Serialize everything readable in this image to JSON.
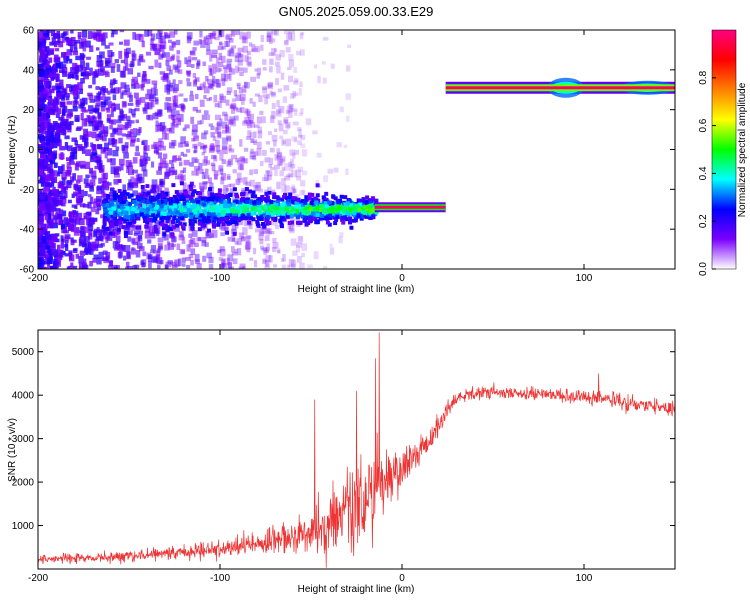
{
  "figure": {
    "title": "GN05.2025.059.00.33.E29"
  },
  "chart_data": [
    {
      "type": "heatmap",
      "xlabel": "Height of straight line (km)",
      "ylabel": "Frequency (Hz)",
      "xlim": [
        -200,
        150
      ],
      "ylim": [
        -60,
        60
      ],
      "x_ticks": [
        -200,
        -100,
        0,
        100
      ],
      "x_tick_labels": [
        "-200",
        "-100",
        "0",
        "100"
      ],
      "y_ticks": [
        -60,
        -40,
        -20,
        0,
        20,
        40,
        60
      ],
      "y_tick_labels": [
        "-60",
        "-40",
        "-20",
        "0",
        "20",
        "40",
        "60"
      ],
      "colorbar": {
        "label": "Normalized spectral amplitude",
        "range": [
          0,
          1
        ],
        "ticks": [
          0.0,
          0.2,
          0.4,
          0.6,
          0.8
        ],
        "tick_labels": [
          "0.0",
          "0.2",
          "0.4",
          "0.6",
          "0.8"
        ],
        "colormap": [
          "#ffffff",
          "#7a00ff",
          "#0000ff",
          "#00ffff",
          "#00ff00",
          "#ffff00",
          "#ff8000",
          "#ff0000",
          "#ff0080"
        ]
      },
      "features": [
        {
          "name": "noise cloud",
          "x_range": [
            -200,
            -60
          ],
          "y_range": [
            -60,
            60
          ],
          "amplitude": 0.12
        },
        {
          "name": "broad band",
          "x_range": [
            -165,
            -15
          ],
          "y_center": -30,
          "y_halfwidth": 8,
          "amplitude": 0.35
        },
        {
          "name": "narrow band",
          "x_range": [
            -15,
            24
          ],
          "y_center": -29,
          "amplitude": 1.0
        },
        {
          "name": "upper band",
          "x_range": [
            24,
            150
          ],
          "y_center": 31,
          "amplitude": 1.0
        }
      ]
    },
    {
      "type": "line",
      "xlabel": "Height of straight line (km)",
      "ylabel": "SNR (10 * v/v)",
      "xlim": [
        -200,
        150
      ],
      "ylim": [
        0,
        5500
      ],
      "x_ticks": [
        -200,
        -100,
        0,
        100
      ],
      "x_tick_labels": [
        "-200",
        "-100",
        "0",
        "100"
      ],
      "y_ticks": [
        1000,
        2000,
        3000,
        4000,
        5000
      ],
      "y_tick_labels": [
        "1000",
        "2000",
        "3000",
        "4000",
        "5000"
      ],
      "color": "#ee3333",
      "envelope": {
        "x": [
          -200,
          -180,
          -160,
          -140,
          -120,
          -100,
          -80,
          -60,
          -50,
          -40,
          -30,
          -20,
          -15,
          -10,
          -5,
          0,
          5,
          10,
          15,
          20,
          25,
          30,
          40,
          50,
          60,
          80,
          100,
          110,
          120,
          140,
          150
        ],
        "mean": [
          230,
          250,
          280,
          320,
          380,
          460,
          560,
          720,
          850,
          1050,
          1400,
          1700,
          1850,
          2000,
          2150,
          2350,
          2550,
          2750,
          2950,
          3300,
          3700,
          3950,
          4050,
          4070,
          4050,
          4020,
          3950,
          3920,
          3850,
          3750,
          3650
        ],
        "noise": [
          90,
          100,
          110,
          130,
          150,
          180,
          250,
          350,
          450,
          600,
          900,
          1100,
          900,
          700,
          500,
          400,
          350,
          300,
          280,
          250,
          180,
          150,
          140,
          130,
          120,
          130,
          150,
          170,
          160,
          150,
          150
        ]
      },
      "peaks": [
        {
          "x": -12.5,
          "y": 5450
        },
        {
          "x": -14.5,
          "y": 4850
        },
        {
          "x": -25,
          "y": 4100
        },
        {
          "x": -48,
          "y": 3900
        },
        {
          "x": 108,
          "y": 4500
        }
      ]
    }
  ]
}
